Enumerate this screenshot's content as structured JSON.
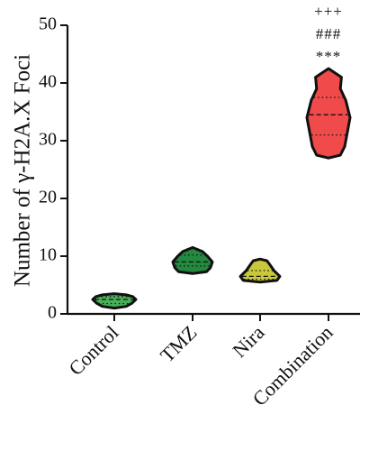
{
  "chart_data": {
    "type": "violin",
    "ylabel": "Number of γ-H2A.X Foci",
    "ylim": [
      0,
      50
    ],
    "yticks": [
      0,
      10,
      20,
      30,
      40,
      50
    ],
    "categories": [
      "Control",
      "TMZ",
      "Nira",
      "Combination"
    ],
    "colors": [
      "#49b058",
      "#23893f",
      "#c8c83a",
      "#f04a4a"
    ],
    "violins": [
      {
        "min": 1.0,
        "q1": 1.8,
        "median": 2.5,
        "q3": 3.0,
        "max": 3.5,
        "profile": [
          [
            1.0,
            0.0
          ],
          [
            1.3,
            0.55
          ],
          [
            1.8,
            0.8
          ],
          [
            2.5,
            1.0
          ],
          [
            3.0,
            0.85
          ],
          [
            3.3,
            0.55
          ],
          [
            3.5,
            0.0
          ]
        ]
      },
      {
        "min": 7.0,
        "q1": 8.3,
        "median": 9.0,
        "q3": 10.2,
        "max": 11.5,
        "profile": [
          [
            7.0,
            0.0
          ],
          [
            7.3,
            0.7
          ],
          [
            8.0,
            0.9
          ],
          [
            9.0,
            1.0
          ],
          [
            10.0,
            0.75
          ],
          [
            10.8,
            0.5
          ],
          [
            11.5,
            0.0
          ]
        ]
      },
      {
        "min": 5.5,
        "q1": 6.0,
        "median": 6.5,
        "q3": 7.5,
        "max": 9.5,
        "profile": [
          [
            5.5,
            0.0
          ],
          [
            5.8,
            0.85
          ],
          [
            6.5,
            1.0
          ],
          [
            7.5,
            0.7
          ],
          [
            8.5,
            0.5
          ],
          [
            9.2,
            0.35
          ],
          [
            9.5,
            0.0
          ]
        ]
      },
      {
        "min": 27.0,
        "q1": 31.0,
        "median": 34.5,
        "q3": 37.5,
        "max": 42.5,
        "profile": [
          [
            27.0,
            0.0
          ],
          [
            27.5,
            0.55
          ],
          [
            29.0,
            0.75
          ],
          [
            31.0,
            0.85
          ],
          [
            34.0,
            1.0
          ],
          [
            37.0,
            0.8
          ],
          [
            39.0,
            0.55
          ],
          [
            41.0,
            0.6
          ],
          [
            42.5,
            0.0
          ]
        ]
      }
    ],
    "annotations": [
      {
        "category": "Combination",
        "lines": [
          "+++",
          "###",
          "***"
        ]
      }
    ]
  }
}
